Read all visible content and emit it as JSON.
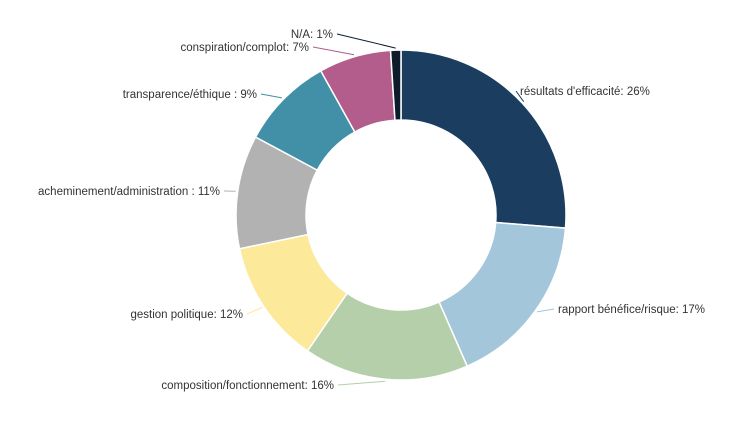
{
  "chart_data": {
    "type": "pie",
    "variant": "donut",
    "start": "top, clockwise",
    "slices": [
      {
        "label": "résultats d'efficacité",
        "value": 26,
        "color": "#1b3d60"
      },
      {
        "label": "rapport bénéfice/risque",
        "value": 17,
        "color": "#a4c6da"
      },
      {
        "label": "composition/fonctionnement",
        "value": 16,
        "color": "#b4cfaa"
      },
      {
        "label": "gestion politique",
        "value": 12,
        "color": "#fde99a"
      },
      {
        "label": "acheminement/administration ",
        "value": 11,
        "color": "#b2b2b2"
      },
      {
        "label": "transparence/éthique ",
        "value": 9,
        "color": "#4290a8"
      },
      {
        "label": "conspiration/complot",
        "value": 7,
        "color": "#b25d8b"
      },
      {
        "label": "N/A",
        "value": 1,
        "color": "#0e1b2a"
      }
    ]
  }
}
